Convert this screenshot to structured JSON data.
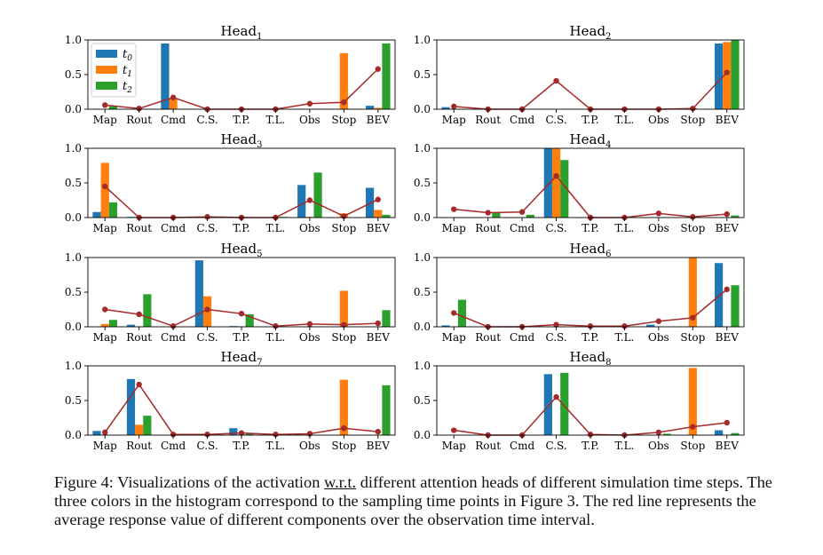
{
  "caption": {
    "prefix": "Figure 4: Visualizations of the activation ",
    "underlined": "w.r.t.",
    "rest": " different attention heads of different simulation time steps. The three colors in the histogram correspond to the sampling time points in Figure 3. The red line represents the average response value of different components over the observation time interval."
  },
  "chart_data": {
    "type": "bar",
    "categories": [
      "Map",
      "Rout",
      "Cmd",
      "C.S.",
      "T.P.",
      "T.L.",
      "Obs",
      "Stop",
      "BEV"
    ],
    "ylim": [
      0,
      1.0
    ],
    "yticks": [
      "0.0",
      "0.5",
      "1.0"
    ],
    "series_names": [
      "t0",
      "t1",
      "t2"
    ],
    "colors": {
      "t0": "#1f77b4",
      "t1": "#ff7f0e",
      "t2": "#2ca02c",
      "avg": "#a52a2a"
    },
    "legend": {
      "placement": "top-left",
      "entries": [
        {
          "base": "t",
          "sub": "0"
        },
        {
          "base": "t",
          "sub": "1"
        },
        {
          "base": "t",
          "sub": "2"
        }
      ]
    },
    "heads": [
      {
        "title": "Head",
        "index": "1",
        "t0": [
          0.0,
          0.0,
          0.95,
          0.0,
          0.0,
          0.0,
          0.0,
          0.0,
          0.05
        ],
        "t1": [
          0.0,
          0.0,
          0.15,
          0.0,
          0.0,
          0.0,
          0.0,
          0.81,
          0.02
        ],
        "t2": [
          0.04,
          0.0,
          0.0,
          0.0,
          0.0,
          0.0,
          0.0,
          0.0,
          0.95
        ],
        "avg": [
          0.06,
          0.01,
          0.17,
          0.0,
          0.0,
          0.0,
          0.08,
          0.1,
          0.58
        ]
      },
      {
        "title": "Head",
        "index": "2",
        "t0": [
          0.03,
          0.0,
          0.0,
          0.0,
          0.0,
          0.0,
          0.0,
          0.0,
          0.95
        ],
        "t1": [
          0.0,
          0.0,
          0.0,
          0.0,
          0.0,
          0.0,
          0.0,
          0.02,
          0.97
        ],
        "t2": [
          0.0,
          0.0,
          0.0,
          0.0,
          0.0,
          0.0,
          0.0,
          0.0,
          1.0
        ],
        "avg": [
          0.04,
          0.0,
          0.0,
          0.41,
          0.0,
          0.0,
          0.0,
          0.01,
          0.53
        ]
      },
      {
        "title": "Head",
        "index": "3",
        "t0": [
          0.08,
          0.01,
          0.0,
          0.0,
          0.0,
          0.0,
          0.47,
          0.0,
          0.43
        ],
        "t1": [
          0.79,
          0.0,
          0.0,
          0.01,
          0.0,
          0.0,
          0.01,
          0.06,
          0.11
        ],
        "t2": [
          0.22,
          0.0,
          0.01,
          0.01,
          0.0,
          0.01,
          0.65,
          0.0,
          0.04
        ],
        "avg": [
          0.45,
          0.0,
          0.0,
          0.01,
          0.0,
          0.0,
          0.25,
          0.02,
          0.26
        ]
      },
      {
        "title": "Head",
        "index": "4",
        "t0": [
          0.0,
          0.0,
          0.0,
          1.0,
          0.0,
          0.0,
          0.0,
          0.0,
          0.0
        ],
        "t1": [
          0.0,
          0.0,
          0.0,
          1.0,
          0.0,
          0.0,
          0.0,
          0.0,
          0.0
        ],
        "t2": [
          0.0,
          0.07,
          0.04,
          0.83,
          0.0,
          0.0,
          0.0,
          0.0,
          0.03
        ],
        "avg": [
          0.12,
          0.07,
          0.08,
          0.6,
          0.0,
          0.0,
          0.06,
          0.01,
          0.05
        ]
      },
      {
        "title": "Head",
        "index": "5",
        "t0": [
          0.0,
          0.03,
          0.0,
          0.96,
          0.01,
          0.0,
          0.0,
          0.0,
          0.0
        ],
        "t1": [
          0.04,
          0.0,
          0.0,
          0.44,
          0.0,
          0.0,
          0.0,
          0.52,
          0.0
        ],
        "t2": [
          0.1,
          0.47,
          0.0,
          0.0,
          0.18,
          0.0,
          0.0,
          0.0,
          0.24
        ],
        "avg": [
          0.25,
          0.18,
          0.01,
          0.25,
          0.19,
          0.01,
          0.04,
          0.03,
          0.05
        ]
      },
      {
        "title": "Head",
        "index": "6",
        "t0": [
          0.02,
          0.0,
          0.0,
          0.0,
          0.0,
          0.0,
          0.03,
          0.0,
          0.92
        ],
        "t1": [
          0.0,
          0.0,
          0.0,
          0.0,
          0.0,
          0.0,
          0.0,
          1.0,
          0.0
        ],
        "t2": [
          0.39,
          0.0,
          0.0,
          0.0,
          0.0,
          0.0,
          0.0,
          0.0,
          0.6
        ],
        "avg": [
          0.2,
          0.0,
          0.0,
          0.03,
          0.01,
          0.01,
          0.08,
          0.13,
          0.54
        ]
      },
      {
        "title": "Head",
        "index": "7",
        "t0": [
          0.06,
          0.81,
          0.0,
          0.0,
          0.1,
          0.0,
          0.0,
          0.0,
          0.0
        ],
        "t1": [
          0.0,
          0.15,
          0.0,
          0.0,
          0.0,
          0.0,
          0.0,
          0.8,
          0.0
        ],
        "t2": [
          0.0,
          0.28,
          0.0,
          0.0,
          0.02,
          0.0,
          0.0,
          0.0,
          0.72
        ],
        "avg": [
          0.04,
          0.73,
          0.01,
          0.01,
          0.03,
          0.01,
          0.02,
          0.1,
          0.05
        ]
      },
      {
        "title": "Head",
        "index": "8",
        "t0": [
          0.0,
          0.0,
          0.0,
          0.88,
          0.0,
          0.0,
          0.0,
          0.0,
          0.07
        ],
        "t1": [
          0.0,
          0.0,
          0.0,
          0.0,
          0.0,
          0.0,
          0.0,
          0.97,
          0.0
        ],
        "t2": [
          0.0,
          0.0,
          0.0,
          0.9,
          0.0,
          0.0,
          0.02,
          0.0,
          0.03
        ],
        "avg": [
          0.07,
          0.0,
          0.0,
          0.55,
          0.01,
          0.0,
          0.04,
          0.12,
          0.18
        ]
      }
    ]
  }
}
